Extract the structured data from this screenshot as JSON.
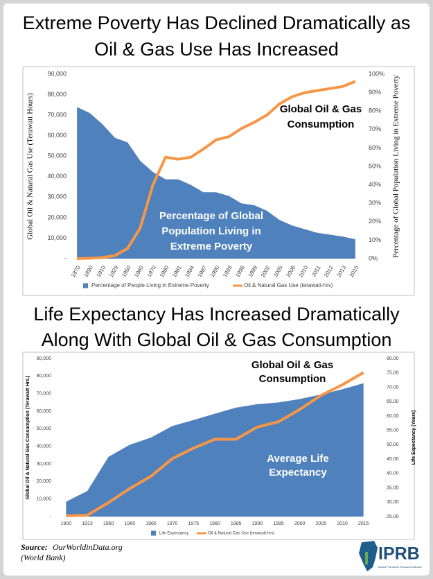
{
  "chart_data": [
    {
      "type": "combo",
      "title": [
        "Extreme Poverty Has Declined Dramatically as",
        "Oil & Gas Use Has Increased"
      ],
      "y_title": "Global Oil & Natural Gas Use (Terawatt Hours)",
      "y2_title": "Percentage of Global Population Living in Extreme Poverty",
      "categories": [
        "1870",
        "1890",
        "1910",
        "1929",
        "1950",
        "1960",
        "1970",
        "1980",
        "1981",
        "1984",
        "1987",
        "1990",
        "1993",
        "1996",
        "1999",
        "2002",
        "2005",
        "2008",
        "2010",
        "2011",
        "2012",
        "2013",
        "2015"
      ],
      "series": [
        {
          "name": "Percentage of People Living in Extreme Poverty",
          "type": "area",
          "axis": "y2",
          "color": "#4f81bd",
          "values": [
            82.2,
            79,
            73,
            65.5,
            63,
            53,
            47,
            43,
            43,
            40,
            36,
            36,
            34,
            30,
            29,
            26,
            21,
            18,
            16,
            14,
            13,
            12,
            10.5
          ]
        },
        {
          "name": "Oil & Natural Gas Use (terawatt-hrs)",
          "type": "line",
          "color": "#f79646",
          "values": [
            0,
            200,
            500,
            1500,
            5000,
            15000,
            36000,
            49500,
            48500,
            49500,
            53500,
            58000,
            59500,
            63500,
            66500,
            70000,
            75500,
            79000,
            81000,
            82000,
            83000,
            84000,
            86500
          ]
        }
      ],
      "ylim": [
        0,
        90000
      ],
      "yticks": [
        {
          "value": 0,
          "label": "-"
        },
        {
          "value": 10000,
          "label": "10,000"
        },
        {
          "value": 20000,
          "label": "20,000"
        },
        {
          "value": 30000,
          "label": "30,000"
        },
        {
          "value": 40000,
          "label": "40,000"
        },
        {
          "value": 50000,
          "label": "50,000"
        },
        {
          "value": 60000,
          "label": "60,000"
        },
        {
          "value": 70000,
          "label": "70,000"
        },
        {
          "value": 80000,
          "label": "80,000"
        },
        {
          "value": 90000,
          "label": "90,000"
        }
      ],
      "y2lim": [
        0,
        100
      ],
      "y2ticks": [
        {
          "value": 0,
          "label": "0%"
        },
        {
          "value": 10,
          "label": "10%"
        },
        {
          "value": 20,
          "label": "20%"
        },
        {
          "value": 30,
          "label": "30%"
        },
        {
          "value": 40,
          "label": "40%"
        },
        {
          "value": 50,
          "label": "50%"
        },
        {
          "value": 60,
          "label": "60%"
        },
        {
          "value": 70,
          "label": "70%"
        },
        {
          "value": 80,
          "label": "80%"
        },
        {
          "value": 90,
          "label": "90%"
        },
        {
          "value": 100,
          "label": "100%"
        }
      ],
      "annotations": [
        {
          "text": [
            "Global Oil & Gas",
            "Consumption"
          ]
        },
        {
          "text": [
            "Percentage of Global",
            "Population Living in",
            "Extreme Poverty"
          ]
        }
      ]
    },
    {
      "type": "combo",
      "title": [
        "Life Expectancy Has Increased Dramatically",
        "Along With Global Oil & Gas Consumption"
      ],
      "y_title": "Global Oil & Natural Gas Consumption (Terawatt Hrs.)",
      "y2_title": "Life Expectancy (Years)",
      "categories": [
        "1900",
        "1913",
        "1950",
        "1960",
        "1965",
        "1970",
        "1975",
        "1980",
        "1985",
        "1990",
        "1995",
        "2000",
        "2005",
        "2010",
        "2015"
      ],
      "series": [
        {
          "name": "Life Expectancy",
          "type": "area",
          "axis": "y2",
          "color": "#4f81bd",
          "values": [
            30.2,
            33.9,
            45.8,
            50,
            52.5,
            56.5,
            58.6,
            60.8,
            62.9,
            64.1,
            64.7,
            65.9,
            67.5,
            69.3,
            71.4
          ]
        },
        {
          "name": "Oil & Natural Gas Use (terawatt-hrs)",
          "type": "line",
          "color": "#f79646",
          "values": [
            500,
            800,
            8000,
            16000,
            23000,
            33000,
            39000,
            44000,
            44000,
            51000,
            54000,
            61000,
            69000,
            75000,
            82000
          ]
        }
      ],
      "ylim": [
        0,
        90000
      ],
      "yticks": [
        {
          "value": 0,
          "label": "-"
        },
        {
          "value": 10000,
          "label": "10,000"
        },
        {
          "value": 20000,
          "label": "20,000"
        },
        {
          "value": 30000,
          "label": "30,000"
        },
        {
          "value": 40000,
          "label": "40,000"
        },
        {
          "value": 50000,
          "label": "50,000"
        },
        {
          "value": 60000,
          "label": "60,000"
        },
        {
          "value": 70000,
          "label": "70,000"
        },
        {
          "value": 80000,
          "label": "80,000"
        },
        {
          "value": 90000,
          "label": "90,000"
        }
      ],
      "y2lim": [
        25,
        80
      ],
      "y2ticks": [
        {
          "value": 25,
          "label": "25.00"
        },
        {
          "value": 30,
          "label": "30.00"
        },
        {
          "value": 35,
          "label": "35.00"
        },
        {
          "value": 40,
          "label": "40.00"
        },
        {
          "value": 45,
          "label": "45.00"
        },
        {
          "value": 50,
          "label": "50.00"
        },
        {
          "value": 55,
          "label": "55.00"
        },
        {
          "value": 60,
          "label": "60.00"
        },
        {
          "value": 65,
          "label": "65.00"
        },
        {
          "value": 70,
          "label": "70.00"
        },
        {
          "value": 75,
          "label": "75.00"
        },
        {
          "value": 80,
          "label": "80.00"
        }
      ],
      "annotations": [
        {
          "text": [
            "Global Oil & Gas",
            "Consumption"
          ]
        },
        {
          "text": [
            "Average Life",
            "Expectancy"
          ]
        }
      ]
    }
  ],
  "source": {
    "label": "Source:",
    "site": "OurWorldinData.org",
    "note": "(World Bank)"
  },
  "logo": {
    "text": "IPRB",
    "subtitle": "Illinois Petroleum Resources Board"
  }
}
